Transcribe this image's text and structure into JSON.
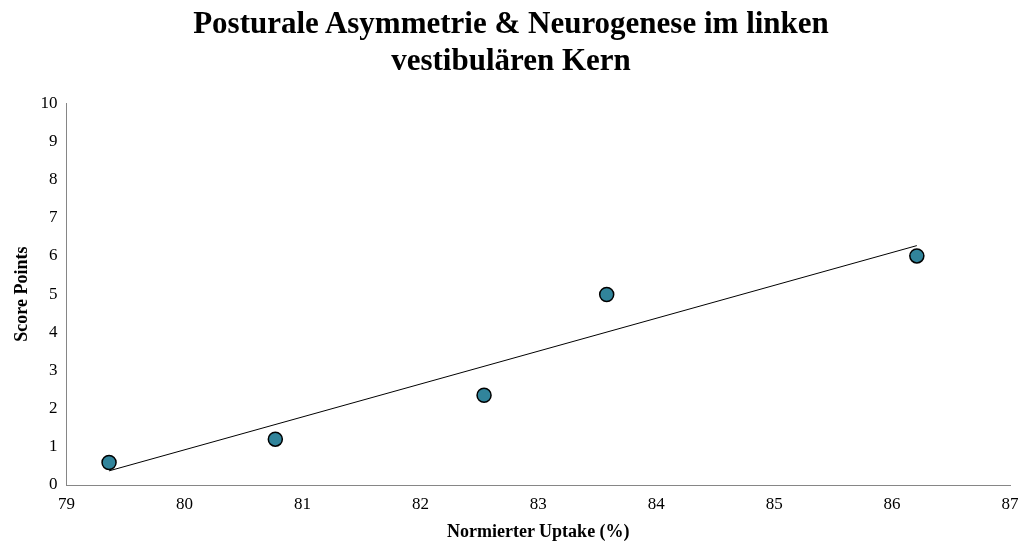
{
  "chart_data": {
    "type": "scatter",
    "title": "Posturale Asymmetrie & Neurogenese im linken vestibulären Kern",
    "xlabel": "Normierter Uptake (%)",
    "ylabel": "Score Points",
    "xlim": [
      79,
      87
    ],
    "xticks": [
      79,
      80,
      81,
      82,
      83,
      84,
      85,
      86,
      87
    ],
    "ylim": [
      0,
      10
    ],
    "yticks": [
      0,
      1,
      2,
      3,
      4,
      5,
      6,
      7,
      8,
      9,
      10
    ],
    "grid": false,
    "legend": false,
    "marker": "circle",
    "series": [
      {
        "color": "#31849b",
        "x": [
          79.36,
          80.77,
          82.54,
          83.58,
          86.21
        ],
        "values": [
          0.59,
          1.2,
          2.35,
          4.99,
          6.0
        ]
      },
      {
        "type": "line",
        "color": "#000000",
        "marker": "none",
        "x": [
          79.36,
          86.21
        ],
        "values": [
          0.37,
          6.27
        ]
      }
    ]
  }
}
